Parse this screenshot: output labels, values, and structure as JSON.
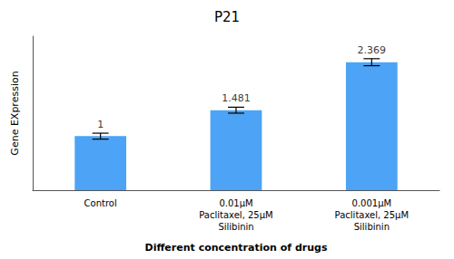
{
  "chart_data": {
    "type": "bar",
    "title": "P21",
    "xlabel": "Different concentration of drugs",
    "ylabel": "Gene EXpression",
    "categories": [
      "Control",
      "0.01μM\nPaclitaxel, 25μM\nSilibinin",
      "0.001μM\nPaclitaxel, 25μM\nSilibinin"
    ],
    "values": [
      1.0,
      1.481,
      2.369
    ],
    "errors": [
      0.055,
      0.055,
      0.065
    ],
    "value_labels": [
      "1",
      "1.481",
      "2.369"
    ],
    "data_labels": true,
    "color": "#4da3f5",
    "ylim": [
      0,
      2.85
    ],
    "yticks": [],
    "tick_labels": "x",
    "grid": false
  }
}
